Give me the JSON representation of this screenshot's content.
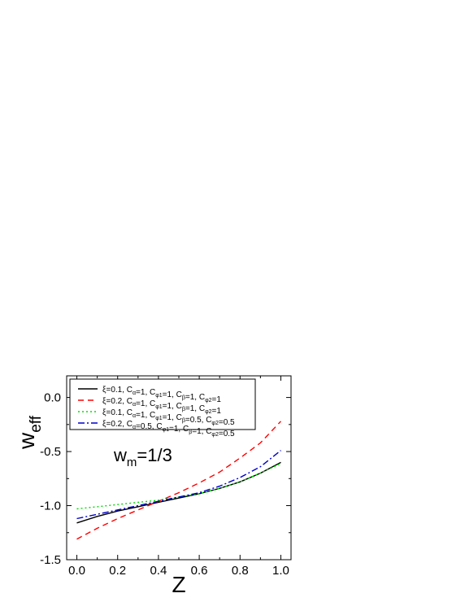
{
  "chart_data": {
    "type": "line",
    "xlabel": "Z",
    "ylabel": {
      "main": "w",
      "sub": "eff"
    },
    "annotation": {
      "main": "w",
      "sub": "m",
      "rest": "=1/3"
    },
    "xlim": [
      -0.05,
      1.05
    ],
    "ylim": [
      -1.5,
      0.2
    ],
    "xticks": [
      0.0,
      0.2,
      0.4,
      0.6,
      0.8,
      1.0
    ],
    "xtick_labels": [
      "0.0",
      "0.2",
      "0.4",
      "0.6",
      "0.8",
      "1.0"
    ],
    "yticks": [
      0.0,
      -0.5,
      -1.0,
      -1.5
    ],
    "ytick_labels": [
      "0.0",
      "-0.5",
      "-1.0",
      "-1.5"
    ],
    "legend_position": "top",
    "grid": false,
    "x": [
      0.0,
      0.1,
      0.2,
      0.3,
      0.4,
      0.5,
      0.6,
      0.7,
      0.8,
      0.9,
      1.0
    ],
    "series": [
      {
        "name_parts": [
          [
            "ξ=0.1, C",
            ""
          ],
          [
            "α",
            "sub"
          ],
          [
            "=1, C",
            ""
          ],
          [
            "φ1",
            "sub"
          ],
          [
            "=1, C",
            ""
          ],
          [
            "β",
            "sub"
          ],
          [
            "=1, C",
            ""
          ],
          [
            "φ2",
            "sub"
          ],
          [
            "=1",
            ""
          ]
        ],
        "color": "#000000",
        "dash": "solid",
        "values": [
          -1.16,
          -1.1,
          -1.05,
          -1.01,
          -0.97,
          -0.93,
          -0.89,
          -0.84,
          -0.78,
          -0.7,
          -0.6
        ]
      },
      {
        "name_parts": [
          [
            "ξ=0.2, C",
            ""
          ],
          [
            "α",
            "sub"
          ],
          [
            "=1, C",
            ""
          ],
          [
            "φ1",
            "sub"
          ],
          [
            "=1, C",
            ""
          ],
          [
            "β",
            "sub"
          ],
          [
            "=1, C",
            ""
          ],
          [
            "φ2",
            "sub"
          ],
          [
            "=1",
            ""
          ]
        ],
        "color": "#ff0000",
        "dash": "dashed",
        "values": [
          -1.31,
          -1.21,
          -1.12,
          -1.04,
          -0.96,
          -0.88,
          -0.79,
          -0.69,
          -0.56,
          -0.42,
          -0.22
        ]
      },
      {
        "name_parts": [
          [
            "ξ=0.1, C",
            ""
          ],
          [
            "α",
            "sub"
          ],
          [
            "=1, C",
            ""
          ],
          [
            "φ1",
            "sub"
          ],
          [
            "=1, C",
            ""
          ],
          [
            "β",
            "sub"
          ],
          [
            "=0.5, C",
            ""
          ],
          [
            "φ2",
            "sub"
          ],
          [
            "=0.5",
            ""
          ]
        ],
        "color": "#00dd00",
        "dash": "dotted",
        "values": [
          -1.03,
          -1.01,
          -0.99,
          -0.97,
          -0.95,
          -0.92,
          -0.89,
          -0.84,
          -0.78,
          -0.7,
          -0.61
        ]
      },
      {
        "name_parts": [
          [
            "ξ=0.2, C",
            ""
          ],
          [
            "α",
            "sub"
          ],
          [
            "=0.5, C",
            ""
          ],
          [
            "φ1",
            "sub"
          ],
          [
            "=1, C",
            ""
          ],
          [
            "β",
            "sub"
          ],
          [
            "=1, C",
            ""
          ],
          [
            "φ2",
            "sub"
          ],
          [
            "=0.5",
            ""
          ]
        ],
        "color": "#0000cc",
        "dash": "dashdot",
        "values": [
          -1.12,
          -1.08,
          -1.04,
          -1.0,
          -0.96,
          -0.92,
          -0.88,
          -0.82,
          -0.74,
          -0.64,
          -0.49
        ]
      }
    ]
  }
}
